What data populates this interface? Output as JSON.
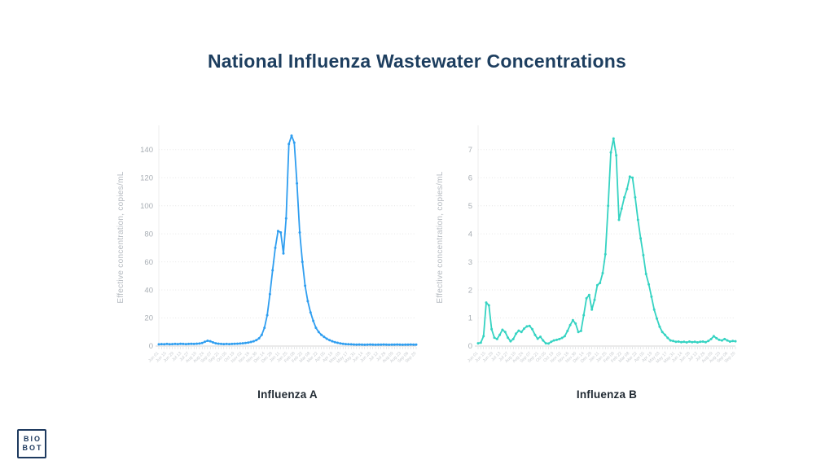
{
  "page": {
    "title": "National Influenza Wastewater Concentrations"
  },
  "logo": {
    "line1": "BIO",
    "line2": "BOT"
  },
  "colors": {
    "title_navy": "#1d3e5f",
    "flu_a_line": "#2f9ef0",
    "flu_b_line": "#35d3c2",
    "axis_text_gray": "#a8aeb4",
    "gridline_gray": "#dcdcdc",
    "baseline_gray": "#d4d4d4"
  },
  "chart_data": [
    {
      "type": "line",
      "name": "influenza-a",
      "title": "Influenza A",
      "ylabel": "Effective concentration, copies/mL",
      "xlabel": "",
      "line_color": "#2f9ef0",
      "markers": true,
      "grid": "horizontal-dotted",
      "legend": "none",
      "ylim": [
        0,
        155
      ],
      "yticks": [
        0,
        20,
        40,
        60,
        80,
        100,
        120,
        140
      ],
      "x_labels": [
        "Jun 01",
        "Jun 15",
        "Jun 29",
        "Jul 13",
        "Jul 27",
        "Aug 10",
        "Aug 24",
        "Sep 07",
        "Sep 21",
        "Oct 05",
        "Oct 19",
        "Nov 02",
        "Nov 16",
        "Nov 30",
        "Dec 14",
        "Dec 28",
        "Jan 11",
        "Jan 25",
        "Feb 08",
        "Feb 22",
        "Mar 08",
        "Mar 22",
        "Apr 05",
        "Apr 19",
        "May 03",
        "May 17",
        "May 31",
        "Jun 14",
        "Jun 28",
        "Jul 12",
        "Jul 26",
        "Aug 09",
        "Aug 23",
        "Sep 06",
        "Sep 20"
      ],
      "values": [
        1.2,
        1.4,
        1.3,
        1.5,
        1.3,
        1.4,
        1.5,
        1.4,
        1.6,
        1.5,
        1.4,
        1.5,
        1.6,
        1.5,
        1.7,
        1.8,
        2.2,
        3.0,
        3.8,
        3.4,
        2.6,
        2.0,
        1.7,
        1.5,
        1.4,
        1.5,
        1.4,
        1.5,
        1.6,
        1.7,
        1.8,
        2.0,
        2.2,
        2.5,
        2.9,
        3.4,
        4.2,
        5.5,
        8,
        13,
        22,
        37,
        54,
        70,
        82,
        81,
        66,
        91,
        144,
        150,
        145,
        116,
        81,
        60,
        43,
        32,
        24,
        18,
        13,
        10,
        8,
        6.5,
        5.2,
        4.2,
        3.4,
        2.8,
        2.3,
        1.9,
        1.6,
        1.4,
        1.3,
        1.2,
        1.1,
        1.0,
        1.1,
        1.0,
        0.9,
        1.0,
        1.1,
        1.0,
        0.9,
        1.0,
        1.0,
        1.1,
        1.0,
        0.9,
        1.0,
        1.0,
        1.1,
        1.0,
        0.9,
        1.0,
        1.0,
        1.1,
        1.0,
        1.0
      ]
    },
    {
      "type": "line",
      "name": "influenza-b",
      "title": "Influenza B",
      "ylabel": "Effective concentration, copies/mL",
      "xlabel": "",
      "line_color": "#35d3c2",
      "markers": true,
      "grid": "horizontal-dotted",
      "legend": "none",
      "ylim": [
        0,
        7.75
      ],
      "yticks": [
        0,
        1,
        2,
        3,
        4,
        5,
        6,
        7
      ],
      "x_labels": [
        "Jun 01",
        "Jun 15",
        "Jun 29",
        "Jul 13",
        "Jul 27",
        "Aug 10",
        "Aug 24",
        "Sep 07",
        "Sep 21",
        "Oct 05",
        "Oct 19",
        "Nov 02",
        "Nov 16",
        "Nov 30",
        "Dec 14",
        "Dec 28",
        "Jan 11",
        "Jan 25",
        "Feb 08",
        "Feb 22",
        "Mar 08",
        "Mar 22",
        "Apr 05",
        "Apr 19",
        "May 03",
        "May 17",
        "May 31",
        "Jun 14",
        "Jun 28",
        "Jul 12",
        "Jul 26",
        "Aug 09",
        "Aug 23",
        "Sep 06",
        "Sep 20"
      ],
      "values": [
        0.1,
        0.12,
        0.35,
        1.55,
        1.45,
        0.6,
        0.3,
        0.25,
        0.4,
        0.58,
        0.5,
        0.3,
        0.17,
        0.25,
        0.44,
        0.55,
        0.5,
        0.62,
        0.7,
        0.72,
        0.6,
        0.4,
        0.26,
        0.33,
        0.2,
        0.1,
        0.09,
        0.15,
        0.2,
        0.22,
        0.25,
        0.29,
        0.35,
        0.54,
        0.75,
        0.92,
        0.8,
        0.5,
        0.54,
        1.1,
        1.7,
        1.82,
        1.3,
        1.65,
        2.17,
        2.25,
        2.6,
        3.27,
        5.0,
        6.9,
        7.4,
        6.8,
        4.5,
        4.9,
        5.3,
        5.6,
        6.04,
        6.0,
        5.3,
        4.5,
        3.84,
        3.24,
        2.57,
        2.2,
        1.76,
        1.3,
        0.98,
        0.69,
        0.5,
        0.4,
        0.29,
        0.2,
        0.18,
        0.15,
        0.16,
        0.14,
        0.15,
        0.13,
        0.16,
        0.14,
        0.15,
        0.13,
        0.15,
        0.16,
        0.14,
        0.18,
        0.25,
        0.35,
        0.28,
        0.22,
        0.2,
        0.25,
        0.2,
        0.16,
        0.18,
        0.17
      ]
    }
  ]
}
